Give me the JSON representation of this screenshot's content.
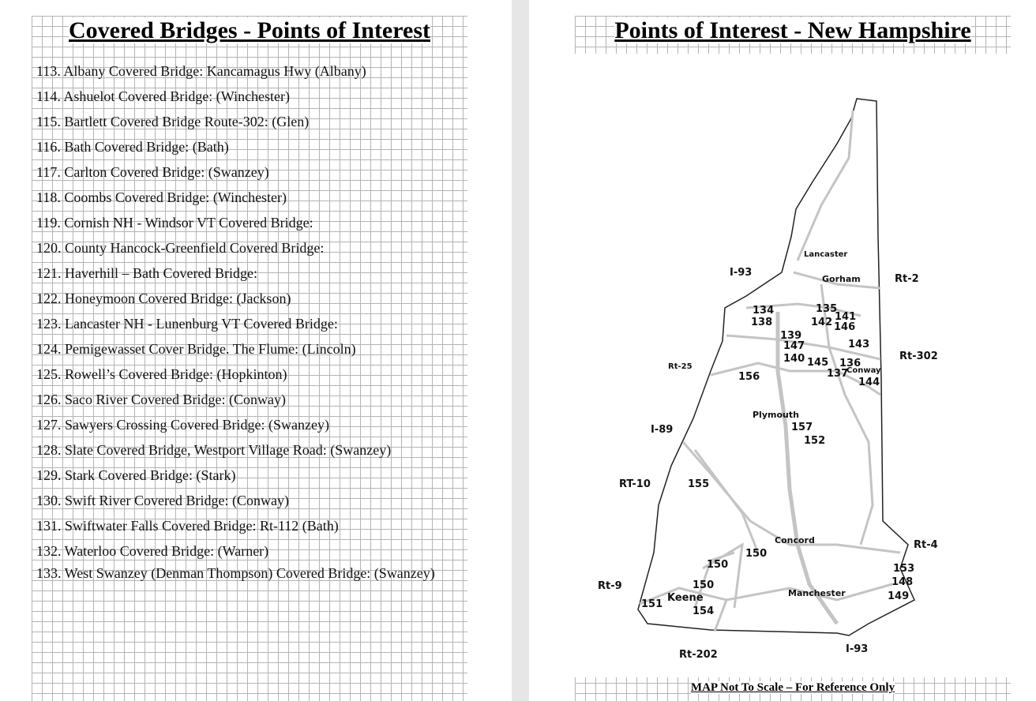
{
  "left_page": {
    "title": "Covered Bridges - Points of Interest",
    "items": [
      "113. Albany Covered Bridge: Kancamagus Hwy (Albany)",
      "114. Ashuelot Covered Bridge: (Winchester)",
      "115. Bartlett Covered Bridge Route-302: (Glen)",
      "116. Bath Covered Bridge: (Bath)",
      "117. Carlton Covered Bridge: (Swanzey)",
      "118. Coombs Covered Bridge: (Winchester)",
      "119. Cornish NH - Windsor VT Covered Bridge:",
      "120. County Hancock-Greenfield Covered Bridge:",
      "121. Haverhill – Bath Covered Bridge:",
      "122. Honeymoon Covered Bridge: (Jackson)",
      "123. Lancaster NH - Lunenburg VT Covered Bridge:",
      "124. Pemigewasset Cover Bridge. The Flume: (Lincoln)",
      "125. Rowell’s Covered Bridge: (Hopkinton)",
      "126. Saco River Covered Bridge: (Conway)",
      "127. Sawyers Crossing Covered Bridge: (Swanzey)",
      "128. Slate Covered Bridge, Westport Village Road: (Swanzey)",
      "129. Stark Covered Bridge: (Stark)",
      "130. Swift River Covered Bridge: (Conway)",
      "131. Swiftwater Falls Covered Bridge: Rt-112 (Bath)",
      "132. Waterloo Covered Bridge: (Warner)",
      "133. West Swanzey (Denman Thompson) Covered Bridge: (Swanzey)"
    ]
  },
  "right_page": {
    "title": "Points of Interest - New Hampshire",
    "footer": "MAP Not To Scale – For Reference Only",
    "map": {
      "towns": [
        "Lancaster",
        "Gorham",
        "Plymouth",
        "Concord",
        "Manchester",
        "Keene",
        "Conway"
      ],
      "roads": [
        "I-93",
        "Rt-2",
        "Rt-302",
        "Rt-25",
        "I-89",
        "RT-10",
        "Rt-4",
        "Rt-9",
        "Rt-202",
        "I-93"
      ],
      "poi_numbers": [
        "134",
        "138",
        "135",
        "141",
        "142",
        "146",
        "139",
        "147",
        "143",
        "140",
        "145",
        "136",
        "137",
        "144",
        "156",
        "157",
        "152",
        "155",
        "150",
        "150",
        "150",
        "151",
        "154",
        "153",
        "148",
        "149"
      ]
    }
  }
}
